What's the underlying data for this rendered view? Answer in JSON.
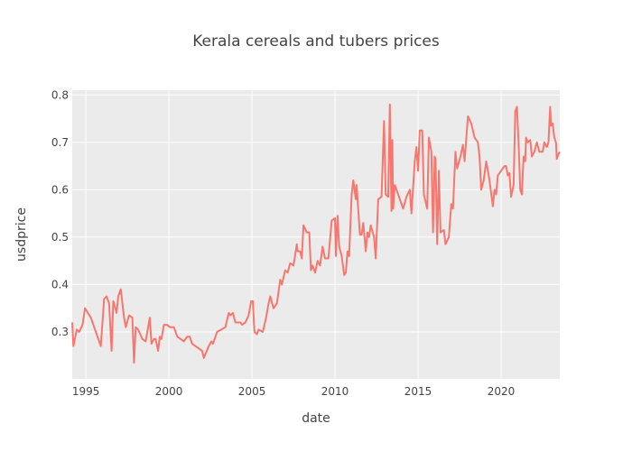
{
  "chart_data": {
    "type": "line",
    "title": "Kerala cereals and tubers prices",
    "x_label": "date",
    "y_label": "usdprice",
    "xlim": [
      1994.18,
      2023.53
    ],
    "xticks": [
      1995,
      2000,
      2005,
      2010,
      2015,
      2020
    ],
    "ylim": [
      0.201,
      0.81
    ],
    "yticks": [
      0.3,
      0.4,
      0.5,
      0.6,
      0.7,
      0.8
    ],
    "grid": true,
    "series": [
      {
        "color": "#f8766d",
        "x": [
          1994.18,
          1994.25,
          1994.45,
          1994.6,
          1994.8,
          1994.95,
          1995.3,
          1995.9,
          1996.1,
          1996.25,
          1996.4,
          1996.55,
          1996.65,
          1996.85,
          1996.95,
          1997.1,
          1997.3,
          1997.4,
          1997.6,
          1997.8,
          1997.9,
          1998.0,
          1998.15,
          1998.4,
          1998.6,
          1998.8,
          1998.85,
          1998.95,
          1999.1,
          1999.2,
          1999.35,
          1999.45,
          1999.55,
          1999.7,
          1999.9,
          2000.05,
          2000.3,
          2000.5,
          2000.9,
          2001.1,
          2001.25,
          2001.4,
          2002.0,
          2002.1,
          2002.4,
          2002.55,
          2002.65,
          2002.8,
          2002.9,
          2003.4,
          2003.6,
          2003.7,
          2003.85,
          2004.0,
          2004.3,
          2004.4,
          2004.6,
          2004.8,
          2004.95,
          2005.05,
          2005.15,
          2005.3,
          2005.4,
          2005.65,
          2005.85,
          2006.0,
          2006.1,
          2006.3,
          2006.5,
          2006.7,
          2006.8,
          2007.0,
          2007.15,
          2007.3,
          2007.5,
          2007.7,
          2007.75,
          2007.9,
          2008.0,
          2008.1,
          2008.3,
          2008.45,
          2008.55,
          2008.65,
          2008.8,
          2008.95,
          2009.1,
          2009.25,
          2009.4,
          2009.6,
          2009.8,
          2010.0,
          2010.05,
          2010.15,
          2010.25,
          2010.4,
          2010.55,
          2010.65,
          2010.75,
          2010.85,
          2011.0,
          2011.1,
          2011.25,
          2011.3,
          2011.5,
          2011.6,
          2011.7,
          2011.85,
          2011.95,
          2012.05,
          2012.15,
          2012.35,
          2012.45,
          2012.6,
          2012.8,
          2012.95,
          2013.05,
          2013.2,
          2013.3,
          2013.4,
          2013.45,
          2013.5,
          2013.6,
          2013.9,
          2014.1,
          2014.3,
          2014.5,
          2014.6,
          2014.8,
          2014.9,
          2015.0,
          2015.1,
          2015.25,
          2015.35,
          2015.55,
          2015.65,
          2015.8,
          2015.9,
          2016.0,
          2016.05,
          2016.15,
          2016.25,
          2016.35,
          2016.55,
          2016.65,
          2016.85,
          2017.0,
          2017.1,
          2017.25,
          2017.35,
          2017.55,
          2017.7,
          2017.8,
          2018.0,
          2018.2,
          2018.4,
          2018.6,
          2018.7,
          2018.8,
          2018.95,
          2019.1,
          2019.3,
          2019.5,
          2019.6,
          2019.7,
          2019.8,
          2020.0,
          2020.2,
          2020.3,
          2020.4,
          2020.5,
          2020.6,
          2020.75,
          2020.85,
          2020.95,
          2021.05,
          2021.15,
          2021.25,
          2021.35,
          2021.45,
          2021.5,
          2021.6,
          2021.75,
          2021.85,
          2022.0,
          2022.15,
          2022.3,
          2022.5,
          2022.6,
          2022.75,
          2022.85,
          2022.95,
          2023.0,
          2023.1,
          2023.2,
          2023.3,
          2023.35,
          2023.45,
          2023.53
        ],
        "values": [
          0.32,
          0.27,
          0.305,
          0.3,
          0.315,
          0.35,
          0.33,
          0.27,
          0.37,
          0.375,
          0.36,
          0.26,
          0.365,
          0.34,
          0.375,
          0.39,
          0.33,
          0.31,
          0.335,
          0.33,
          0.235,
          0.31,
          0.305,
          0.285,
          0.28,
          0.32,
          0.33,
          0.275,
          0.285,
          0.285,
          0.26,
          0.29,
          0.285,
          0.315,
          0.315,
          0.31,
          0.31,
          0.29,
          0.28,
          0.29,
          0.29,
          0.275,
          0.26,
          0.245,
          0.27,
          0.28,
          0.275,
          0.29,
          0.3,
          0.31,
          0.34,
          0.335,
          0.34,
          0.32,
          0.32,
          0.315,
          0.32,
          0.335,
          0.365,
          0.365,
          0.3,
          0.295,
          0.305,
          0.3,
          0.33,
          0.36,
          0.375,
          0.35,
          0.36,
          0.41,
          0.4,
          0.43,
          0.425,
          0.445,
          0.44,
          0.485,
          0.47,
          0.47,
          0.455,
          0.525,
          0.51,
          0.51,
          0.43,
          0.44,
          0.425,
          0.45,
          0.44,
          0.48,
          0.455,
          0.455,
          0.535,
          0.54,
          0.46,
          0.545,
          0.48,
          0.46,
          0.42,
          0.425,
          0.47,
          0.46,
          0.59,
          0.62,
          0.58,
          0.61,
          0.505,
          0.505,
          0.53,
          0.47,
          0.51,
          0.5,
          0.525,
          0.5,
          0.455,
          0.58,
          0.585,
          0.745,
          0.59,
          0.585,
          0.78,
          0.555,
          0.705,
          0.56,
          0.61,
          0.58,
          0.56,
          0.585,
          0.6,
          0.55,
          0.66,
          0.69,
          0.64,
          0.725,
          0.725,
          0.59,
          0.56,
          0.71,
          0.68,
          0.51,
          0.67,
          0.665,
          0.485,
          0.64,
          0.51,
          0.515,
          0.485,
          0.5,
          0.57,
          0.56,
          0.68,
          0.645,
          0.67,
          0.695,
          0.66,
          0.755,
          0.74,
          0.71,
          0.7,
          0.67,
          0.6,
          0.62,
          0.66,
          0.62,
          0.565,
          0.6,
          0.59,
          0.63,
          0.64,
          0.65,
          0.65,
          0.63,
          0.635,
          0.585,
          0.61,
          0.765,
          0.775,
          0.7,
          0.6,
          0.59,
          0.67,
          0.66,
          0.71,
          0.7,
          0.705,
          0.67,
          0.68,
          0.7,
          0.68,
          0.68,
          0.7,
          0.69,
          0.7,
          0.775,
          0.735,
          0.74,
          0.71,
          0.7,
          0.665,
          0.675,
          0.68
        ]
      }
    ]
  }
}
